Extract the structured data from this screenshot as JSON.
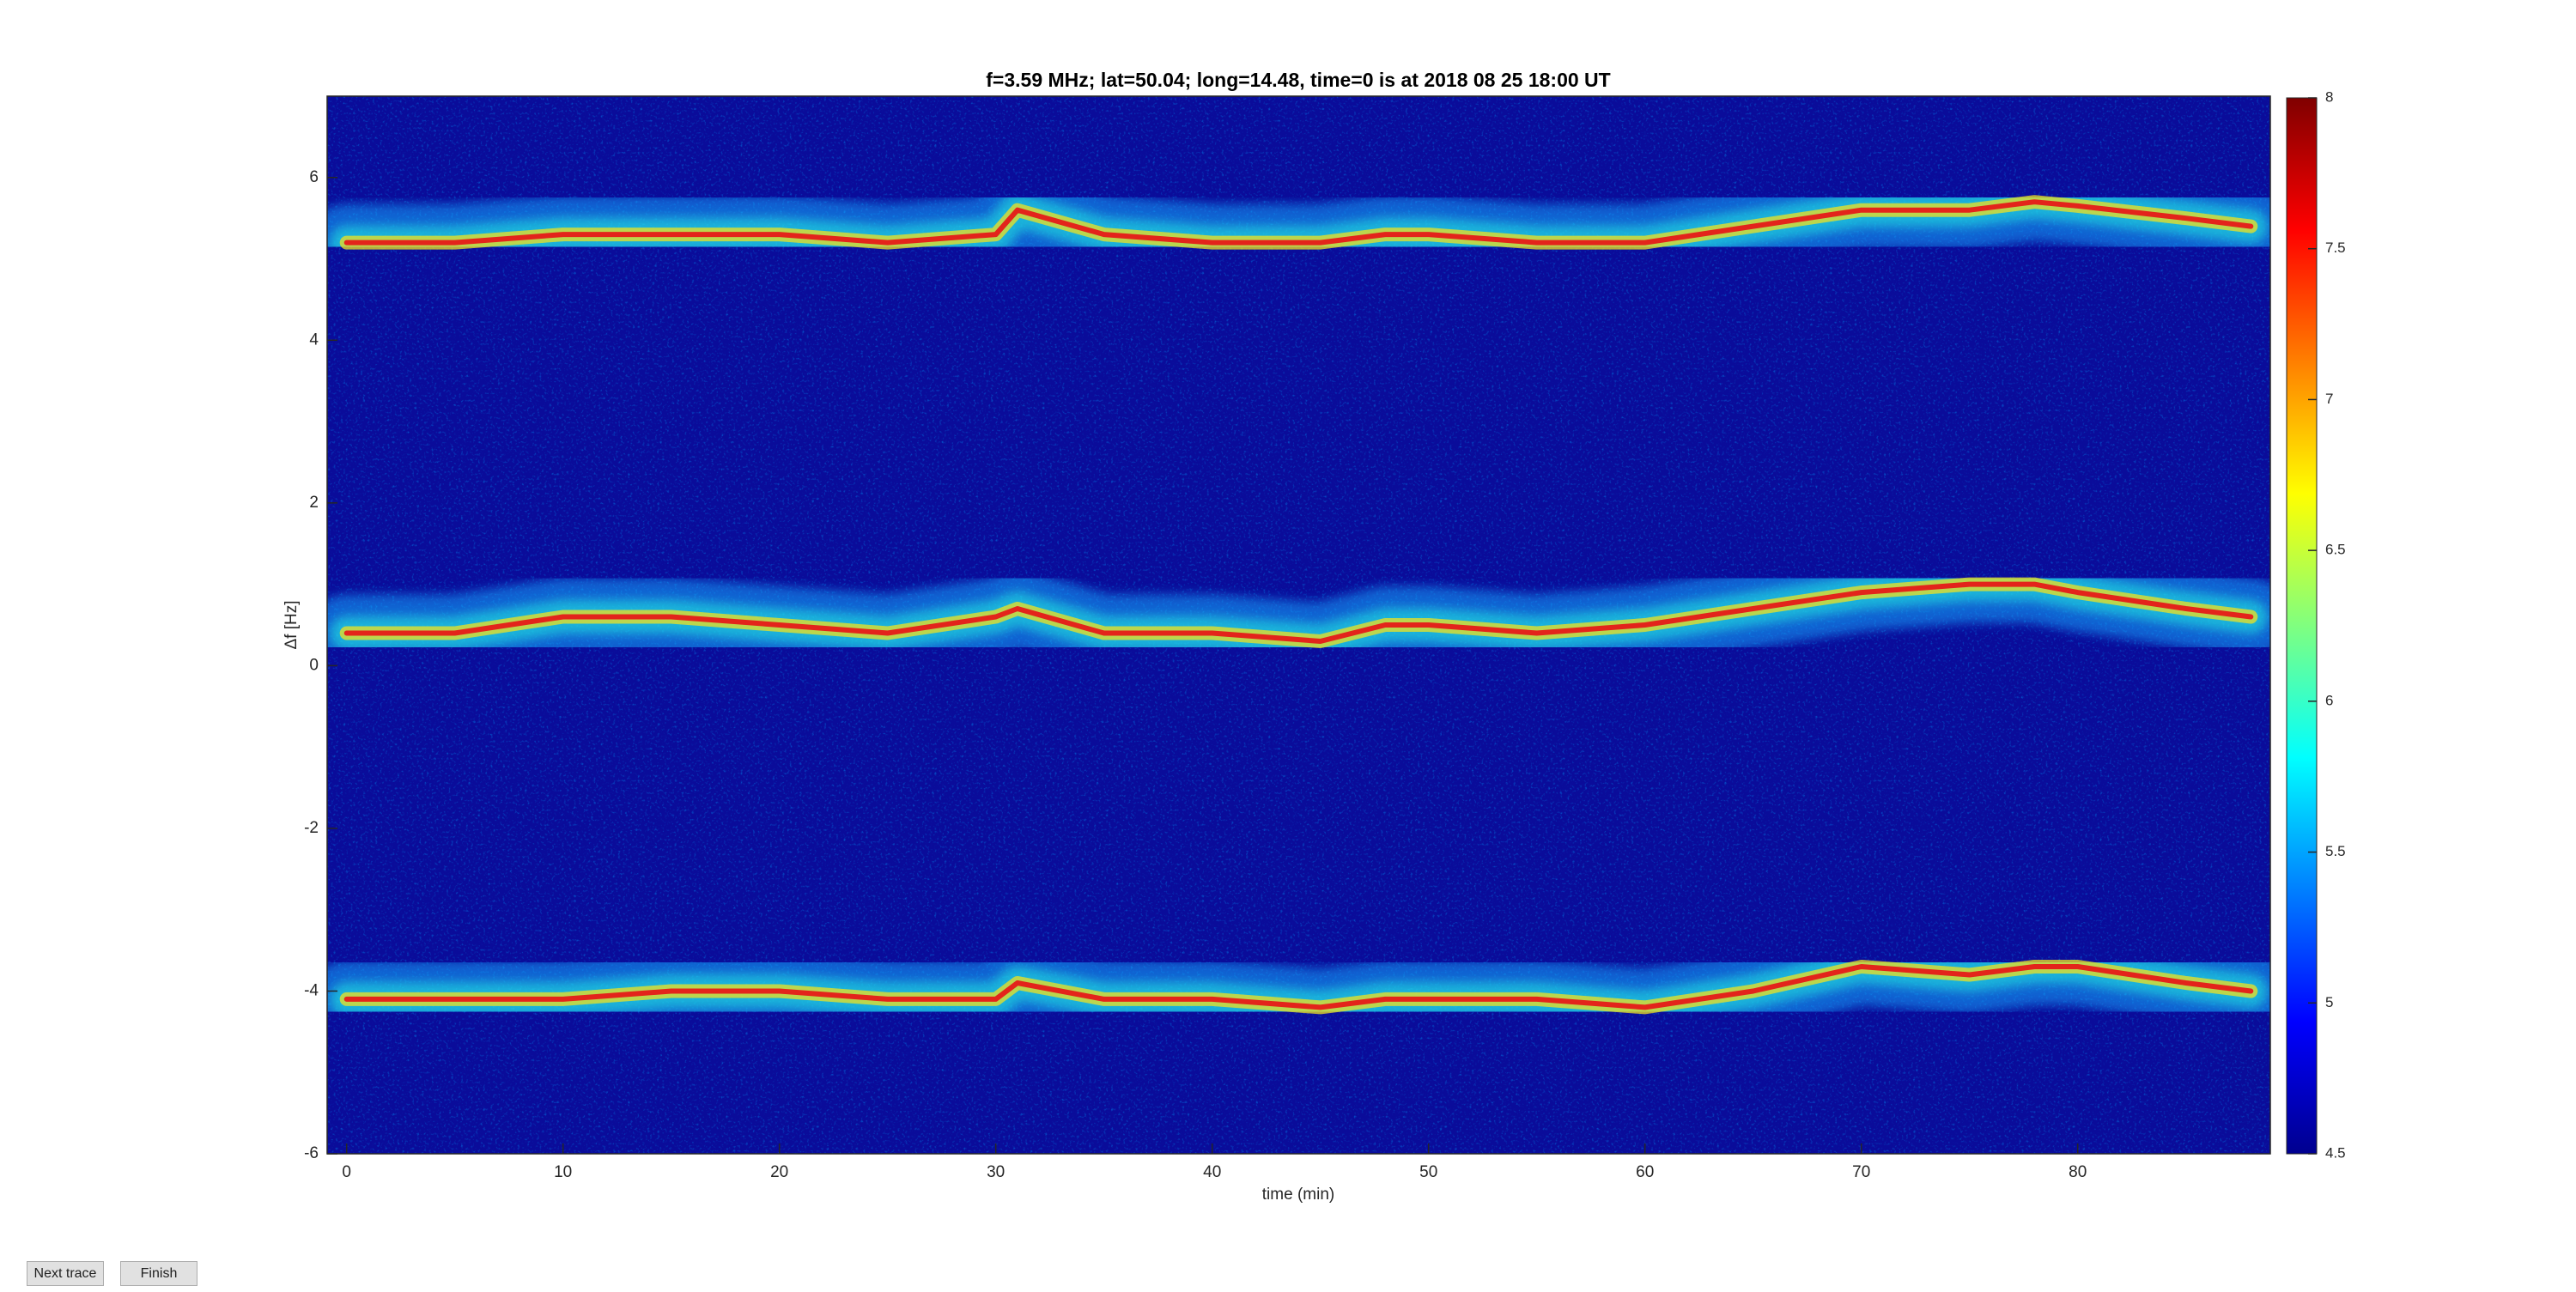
{
  "chart_data": {
    "type": "line",
    "title": "f=3.59 MHz;  lat=50.04; long=14.48, time=0 is at 2018 08 25 18:00 UT",
    "xlabel": "time (min)",
    "ylabel": "Δf [Hz]",
    "x": [
      0,
      5,
      10,
      15,
      20,
      25,
      30,
      31,
      35,
      40,
      45,
      48,
      50,
      55,
      60,
      65,
      70,
      75,
      78,
      80,
      85,
      88
    ],
    "series": [
      {
        "color": "#e3241b",
        "values": [
          5.2,
          5.2,
          5.3,
          5.3,
          5.3,
          5.2,
          5.3,
          5.6,
          5.3,
          5.2,
          5.2,
          5.3,
          5.3,
          5.2,
          5.2,
          5.4,
          5.6,
          5.6,
          5.7,
          5.65,
          5.5,
          5.4
        ]
      },
      {
        "color": "#e3241b",
        "values": [
          0.4,
          0.4,
          0.6,
          0.6,
          0.5,
          0.4,
          0.6,
          0.7,
          0.4,
          0.4,
          0.3,
          0.5,
          0.5,
          0.4,
          0.5,
          0.7,
          0.9,
          1.0,
          1.0,
          0.9,
          0.7,
          0.6
        ]
      },
      {
        "color": "#e3241b",
        "values": [
          -4.1,
          -4.1,
          -4.1,
          -4.0,
          -4.0,
          -4.1,
          -4.1,
          -3.9,
          -4.1,
          -4.1,
          -4.2,
          -4.1,
          -4.1,
          -4.1,
          -4.2,
          -4.0,
          -3.7,
          -3.8,
          -3.7,
          -3.7,
          -3.9,
          -4.0
        ]
      }
    ],
    "xlim": [
      -0.9,
      88.9
    ],
    "xticks": [
      0,
      10,
      20,
      30,
      40,
      50,
      60,
      70,
      80
    ],
    "ylim": [
      -6,
      7
    ],
    "yticks": [
      -6,
      -4,
      -2,
      0,
      2,
      4,
      6
    ],
    "colorbar": {
      "lim": [
        4.5,
        8
      ],
      "ticks": [
        4.5,
        5,
        5.5,
        6,
        6.5,
        7,
        7.5,
        8
      ]
    }
  },
  "buttons": [
    "Next trace",
    "Finish"
  ]
}
